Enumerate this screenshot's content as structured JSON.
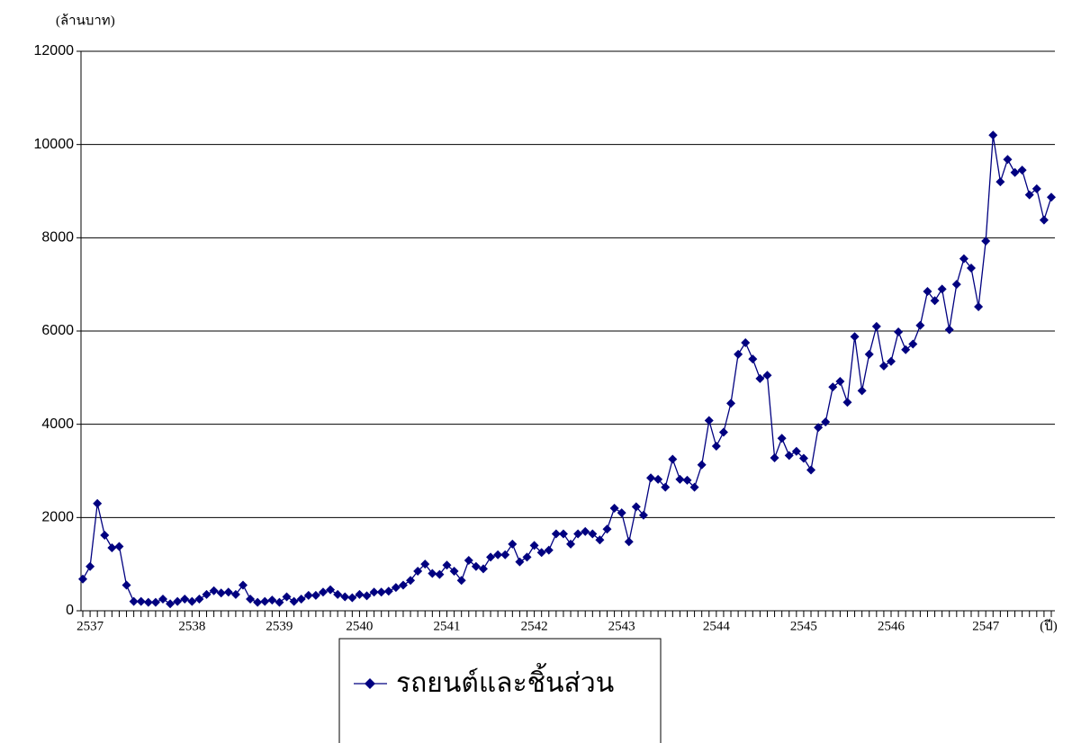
{
  "chart_data": {
    "type": "line",
    "y_label": "(ล้านบาท)",
    "x_label": "(ปี)",
    "categories": [
      null,
      "2537",
      null,
      null,
      null,
      null,
      null,
      null,
      null,
      null,
      null,
      null,
      null,
      null,
      null,
      "2538",
      null,
      null,
      null,
      null,
      null,
      null,
      null,
      null,
      null,
      null,
      null,
      "2539",
      null,
      null,
      null,
      null,
      null,
      null,
      null,
      null,
      null,
      null,
      "2540",
      null,
      null,
      null,
      null,
      null,
      null,
      null,
      null,
      null,
      null,
      null,
      "2541",
      null,
      null,
      null,
      null,
      null,
      null,
      null,
      null,
      null,
      null,
      null,
      "2542",
      null,
      null,
      null,
      null,
      null,
      null,
      null,
      null,
      null,
      null,
      null,
      "2543",
      null,
      null,
      null,
      null,
      null,
      null,
      null,
      null,
      null,
      null,
      null,
      null,
      "2544",
      null,
      null,
      null,
      null,
      null,
      null,
      null,
      null,
      null,
      null,
      null,
      "2545",
      null,
      null,
      null,
      null,
      null,
      null,
      null,
      null,
      null,
      null,
      null,
      "2546",
      null,
      null,
      null,
      null,
      null,
      null,
      null,
      null,
      null,
      null,
      null,
      null,
      "2547",
      null,
      null,
      null,
      null,
      null,
      null,
      null,
      null,
      null
    ],
    "series": [
      {
        "name": "รถยนต์และชิ้นส่วน",
        "color": "#000080",
        "values": [
          680,
          950,
          2300,
          1620,
          1350,
          1380,
          550,
          200,
          200,
          180,
          180,
          250,
          150,
          200,
          250,
          200,
          250,
          350,
          430,
          380,
          400,
          350,
          550,
          250,
          180,
          200,
          230,
          180,
          300,
          200,
          250,
          330,
          330,
          400,
          450,
          350,
          300,
          280,
          350,
          320,
          400,
          400,
          420,
          500,
          550,
          650,
          850,
          1000,
          800,
          780,
          980,
          850,
          650,
          1080,
          950,
          900,
          1150,
          1200,
          1200,
          1430,
          1050,
          1150,
          1400,
          1250,
          1300,
          1650,
          1650,
          1430,
          1650,
          1700,
          1650,
          1520,
          1750,
          2200,
          2100,
          1480,
          2230,
          2050,
          2850,
          2820,
          2650,
          3250,
          2820,
          2800,
          2650,
          3130,
          4080,
          3530,
          3830,
          4450,
          5500,
          5750,
          5400,
          4980,
          5050,
          3280,
          3700,
          3330,
          3420,
          3270,
          3020,
          3930,
          4050,
          4800,
          4920,
          4470,
          5880,
          4720,
          5500,
          6100,
          5250,
          5350,
          5980,
          5600,
          5720,
          6120,
          6850,
          6650,
          6900,
          6030,
          7000,
          7550,
          7350,
          6520,
          7930,
          10200,
          9200,
          9680,
          9400,
          9450,
          8920,
          9050,
          8380,
          8870
        ]
      }
    ],
    "ylim": [
      0,
      12000
    ],
    "yticks": [
      0,
      2000,
      4000,
      6000,
      8000,
      10000,
      12000
    ],
    "grid": true
  }
}
